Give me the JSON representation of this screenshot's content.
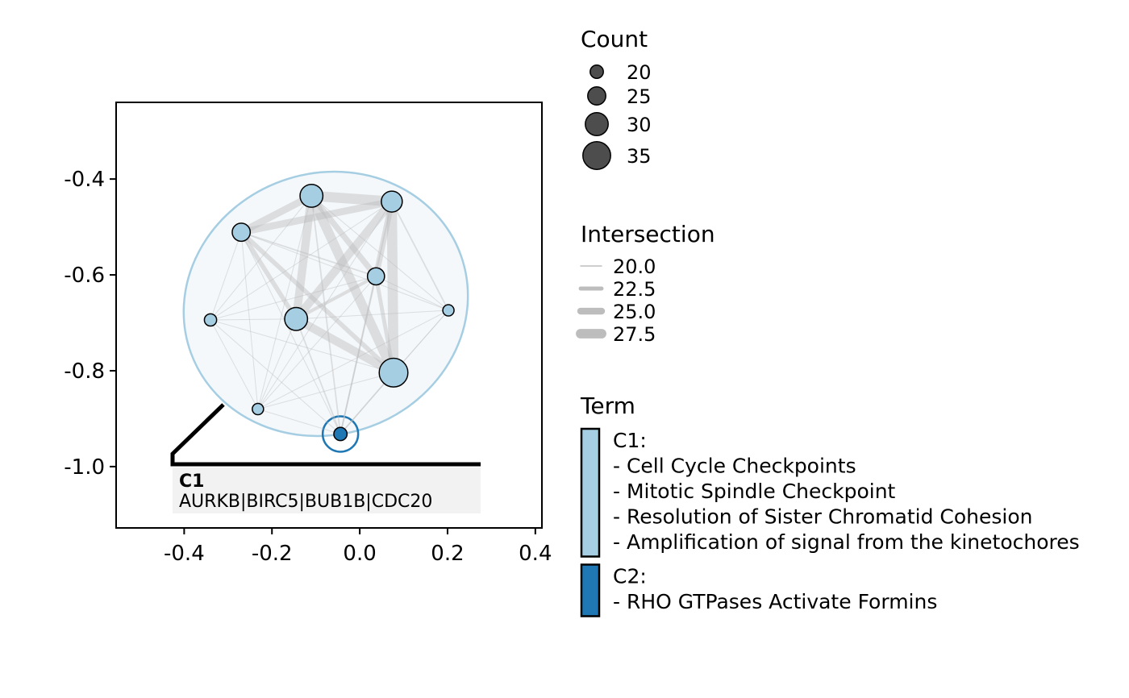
{
  "chart_data": {
    "type": "network",
    "x_ticks": [
      "-0.4",
      "-0.2",
      "0.0",
      "0.2",
      "0.4"
    ],
    "y_ticks": [
      "-0.4",
      "-0.6",
      "-0.8",
      "-1.0"
    ],
    "xlim": [
      -0.555,
      0.415
    ],
    "ylim": [
      -1.128,
      -0.24
    ],
    "nodes": [
      {
        "id": 1,
        "x": -0.11,
        "y": -0.435,
        "count": 30,
        "cluster": "C1"
      },
      {
        "id": 2,
        "x": 0.073,
        "y": -0.447,
        "count": 28,
        "cluster": "C1"
      },
      {
        "id": 3,
        "x": -0.27,
        "y": -0.511,
        "count": 25,
        "cluster": "C1"
      },
      {
        "id": 4,
        "x": 0.037,
        "y": -0.603,
        "count": 24,
        "cluster": "C1"
      },
      {
        "id": 5,
        "x": -0.145,
        "y": -0.692,
        "count": 30,
        "cluster": "C1"
      },
      {
        "id": 6,
        "x": -0.34,
        "y": -0.694,
        "count": 19,
        "cluster": "C1"
      },
      {
        "id": 7,
        "x": 0.202,
        "y": -0.674,
        "count": 18,
        "cluster": "C1"
      },
      {
        "id": 8,
        "x": 0.077,
        "y": -0.804,
        "count": 36,
        "cluster": "C1"
      },
      {
        "id": 9,
        "x": -0.232,
        "y": -0.88,
        "count": 18,
        "cluster": "C1"
      },
      {
        "id": 10,
        "x": -0.044,
        "y": -0.932,
        "count": 20,
        "cluster": "C2"
      }
    ],
    "edges": [
      {
        "source": 1,
        "target": 2,
        "intersection": 27.5
      },
      {
        "source": 1,
        "target": 3,
        "intersection": 25.0
      },
      {
        "source": 1,
        "target": 4,
        "intersection": 24.0
      },
      {
        "source": 1,
        "target": 5,
        "intersection": 26.0
      },
      {
        "source": 1,
        "target": 8,
        "intersection": 27.0
      },
      {
        "source": 2,
        "target": 3,
        "intersection": 25.0
      },
      {
        "source": 2,
        "target": 4,
        "intersection": 24.0
      },
      {
        "source": 2,
        "target": 5,
        "intersection": 26.0
      },
      {
        "source": 2,
        "target": 8,
        "intersection": 27.5
      },
      {
        "source": 3,
        "target": 5,
        "intersection": 23.0
      },
      {
        "source": 3,
        "target": 8,
        "intersection": 23.0
      },
      {
        "source": 3,
        "target": 4,
        "intersection": 20.5
      },
      {
        "source": 4,
        "target": 5,
        "intersection": 22.0
      },
      {
        "source": 4,
        "target": 8,
        "intersection": 22.5
      },
      {
        "source": 5,
        "target": 8,
        "intersection": 26.0
      },
      {
        "source": 1,
        "target": 6,
        "intersection": 20.0
      },
      {
        "source": 1,
        "target": 7,
        "intersection": 20.0
      },
      {
        "source": 1,
        "target": 9,
        "intersection": 20.0
      },
      {
        "source": 1,
        "target": 10,
        "intersection": 20.5
      },
      {
        "source": 2,
        "target": 6,
        "intersection": 20.0
      },
      {
        "source": 2,
        "target": 7,
        "intersection": 20.5
      },
      {
        "source": 2,
        "target": 9,
        "intersection": 20.0
      },
      {
        "source": 2,
        "target": 10,
        "intersection": 20.5
      },
      {
        "source": 3,
        "target": 6,
        "intersection": 20.0
      },
      {
        "source": 3,
        "target": 7,
        "intersection": 20.0
      },
      {
        "source": 3,
        "target": 9,
        "intersection": 20.0
      },
      {
        "source": 3,
        "target": 10,
        "intersection": 20.0
      },
      {
        "source": 4,
        "target": 6,
        "intersection": 20.0
      },
      {
        "source": 4,
        "target": 7,
        "intersection": 20.0
      },
      {
        "source": 4,
        "target": 9,
        "intersection": 20.0
      },
      {
        "source": 4,
        "target": 10,
        "intersection": 20.5
      },
      {
        "source": 5,
        "target": 6,
        "intersection": 20.0
      },
      {
        "source": 5,
        "target": 7,
        "intersection": 20.0
      },
      {
        "source": 5,
        "target": 9,
        "intersection": 20.0
      },
      {
        "source": 5,
        "target": 10,
        "intersection": 20.5
      },
      {
        "source": 6,
        "target": 8,
        "intersection": 20.0
      },
      {
        "source": 6,
        "target": 9,
        "intersection": 20.0
      },
      {
        "source": 6,
        "target": 10,
        "intersection": 20.0
      },
      {
        "source": 7,
        "target": 8,
        "intersection": 20.0
      },
      {
        "source": 7,
        "target": 9,
        "intersection": 20.0
      },
      {
        "source": 7,
        "target": 10,
        "intersection": 20.0
      },
      {
        "source": 8,
        "target": 9,
        "intersection": 20.0
      },
      {
        "source": 8,
        "target": 10,
        "intersection": 20.5
      },
      {
        "source": 9,
        "target": 10,
        "intersection": 20.0
      }
    ],
    "annotation": {
      "cluster": "C1",
      "title": "C1",
      "genes": "AURKB|BIRC5|BUB1B|CDC20"
    }
  },
  "legend": {
    "count": {
      "title": "Count",
      "entries": [
        {
          "label": "20",
          "value": 20
        },
        {
          "label": "25",
          "value": 25
        },
        {
          "label": "30",
          "value": 30
        },
        {
          "label": "35",
          "value": 35
        }
      ]
    },
    "intersection": {
      "title": "Intersection",
      "entries": [
        {
          "label": "20.0",
          "value": 20.0
        },
        {
          "label": "22.5",
          "value": 22.5
        },
        {
          "label": "25.0",
          "value": 25.0
        },
        {
          "label": "27.5",
          "value": 27.5
        }
      ]
    },
    "term": {
      "title": "Term",
      "clusters": [
        {
          "id": "C1",
          "color": "#a6cee3",
          "lines": [
            "C1:",
            "- Cell Cycle Checkpoints",
            "- Mitotic Spindle Checkpoint",
            "- Resolution of Sister Chromatid Cohesion",
            "- Amplification of signal from the kinetochores"
          ]
        },
        {
          "id": "C2",
          "color": "#1f78b4",
          "lines": [
            "C2:",
            "- RHO GTPases Activate Formins"
          ]
        }
      ]
    }
  },
  "colors": {
    "node_outline": "#000000",
    "edge": "#bdbdbd",
    "hull_fill": "#f4f8fb",
    "hull_stroke": "#a6cee3",
    "count_legend_fill": "#4d4d4d",
    "annotation_box": "#f2f2f2"
  }
}
